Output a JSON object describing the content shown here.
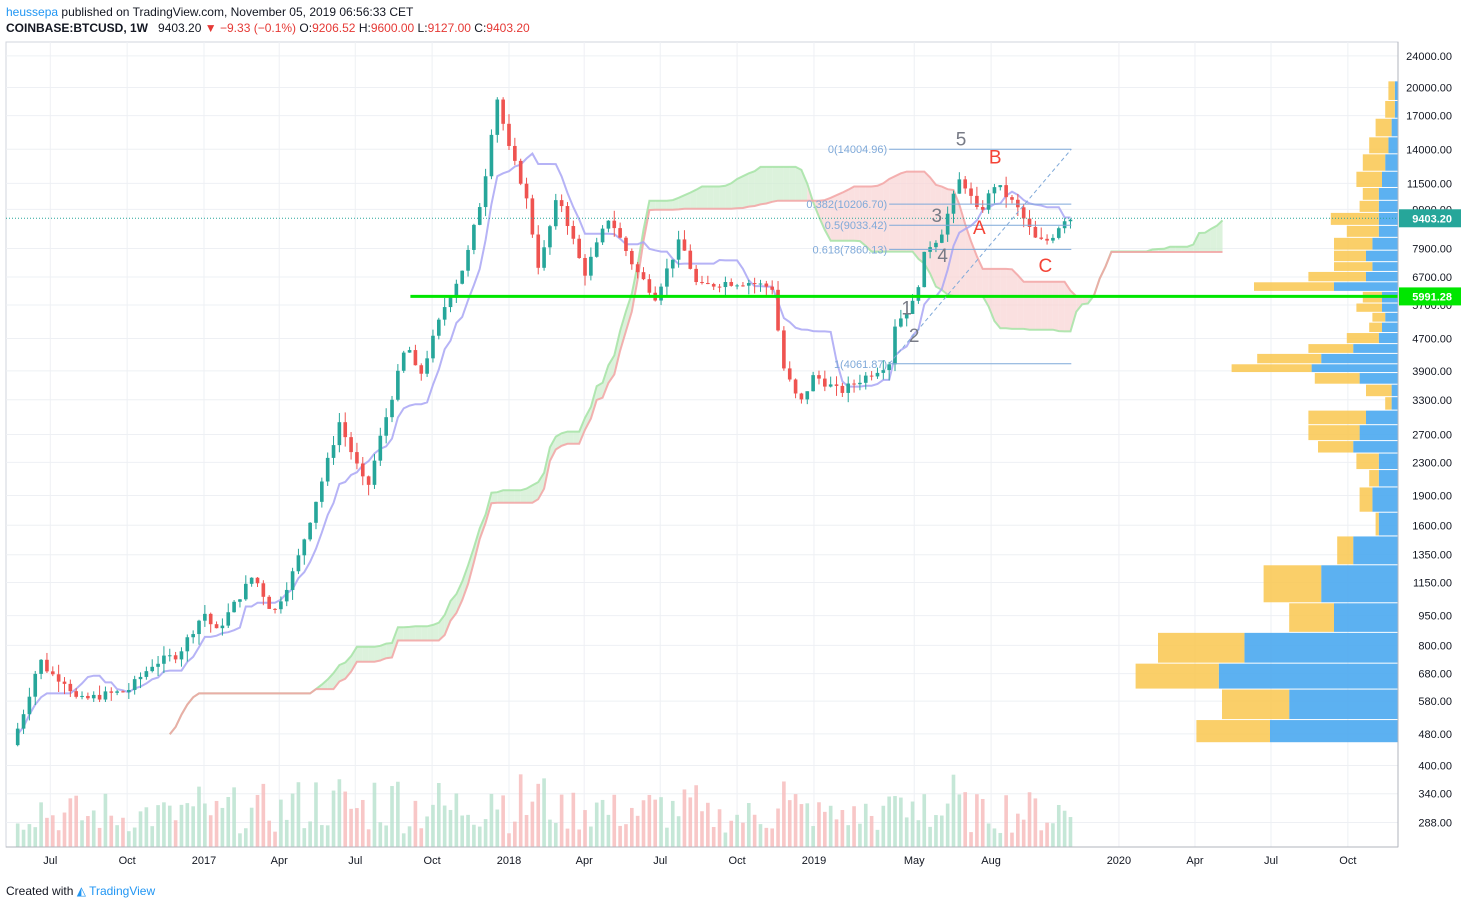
{
  "header": {
    "author": "heussepa",
    "published_text": "published on TradingView.com, November 05, 2019 06:56:33 CET",
    "symbol": "COINBASE:BTCUSD, 1W",
    "last": "9403.20",
    "change": "−9.33 (−0.1%)",
    "o_label": "O:",
    "o_value": "9206.52",
    "h_label": "H:",
    "h_value": "9600.00",
    "l_label": "L:",
    "l_value": "9127.00",
    "c_label": "C:",
    "c_value": "9403.20"
  },
  "footer": {
    "created_with": "Created with",
    "brand": "TradingView"
  },
  "colors": {
    "up": "#26a69a",
    "down": "#ef5350",
    "tenkan": "#a9a6f5",
    "kumo_green": "#cdeccd",
    "kumo_red": "#f8d3d3",
    "support": "#00e600",
    "vp_up": "#4aa8ef",
    "vp_down": "#f9c74f",
    "fib": "#7fa9d9",
    "elliott_impulse": "#787b86",
    "elliott_corrective": "#f44336",
    "price_tag": "#26a69a"
  },
  "chart_data": {
    "type": "candlestick",
    "symbol": "COINBASE:BTCUSD",
    "interval": "1W",
    "y_scale": "log",
    "ylim": [
      250,
      26000
    ],
    "y_ticks": [
      "24000.00",
      "20000.00",
      "17000.00",
      "14000.00",
      "11500.00",
      "9900.00",
      "7900.00",
      "6700.00",
      "5700.00",
      "4700.00",
      "3900.00",
      "3300.00",
      "2700.00",
      "2300.00",
      "1900.00",
      "1600.00",
      "1350.00",
      "1150.00",
      "950.00",
      "800.00",
      "680.00",
      "580.00",
      "480.00",
      "400.00",
      "340.00",
      "288.00"
    ],
    "x_range": [
      "2016-05-09",
      "2020-11-30"
    ],
    "x_ticks": [
      {
        "label": "Jul",
        "date": "2016-07-01"
      },
      {
        "label": "Oct",
        "date": "2016-10-01"
      },
      {
        "label": "2017",
        "date": "2017-01-01"
      },
      {
        "label": "Apr",
        "date": "2017-04-01"
      },
      {
        "label": "Jul",
        "date": "2017-07-01"
      },
      {
        "label": "Oct",
        "date": "2017-10-01"
      },
      {
        "label": "2018",
        "date": "2018-01-01"
      },
      {
        "label": "Apr",
        "date": "2018-04-01"
      },
      {
        "label": "Jul",
        "date": "2018-07-01"
      },
      {
        "label": "Oct",
        "date": "2018-10-01"
      },
      {
        "label": "2019",
        "date": "2019-01-01"
      },
      {
        "label": "May",
        "date": "2019-05-01"
      },
      {
        "label": "Aug",
        "date": "2019-08-01"
      },
      {
        "label": "2020",
        "date": "2020-01-01"
      },
      {
        "label": "Apr",
        "date": "2020-04-01"
      },
      {
        "label": "Jul",
        "date": "2020-07-01"
      },
      {
        "label": "Oct",
        "date": "2020-10-01"
      }
    ],
    "grid": true,
    "price_path": [
      {
        "date": "2016-05-16",
        "close": 450
      },
      {
        "date": "2016-06-01",
        "close": 560
      },
      {
        "date": "2016-06-18",
        "close": 740
      },
      {
        "date": "2016-07-01",
        "close": 680
      },
      {
        "date": "2016-07-20",
        "close": 650
      },
      {
        "date": "2016-08-03",
        "close": 580
      },
      {
        "date": "2016-09-01",
        "close": 600
      },
      {
        "date": "2016-10-01",
        "close": 615
      },
      {
        "date": "2016-11-01",
        "close": 720
      },
      {
        "date": "2016-12-01",
        "close": 760
      },
      {
        "date": "2017-01-01",
        "close": 970
      },
      {
        "date": "2017-01-15",
        "close": 860
      },
      {
        "date": "2017-03-01",
        "close": 1200
      },
      {
        "date": "2017-03-25",
        "close": 960
      },
      {
        "date": "2017-04-20",
        "close": 1250
      },
      {
        "date": "2017-05-20",
        "close": 2000
      },
      {
        "date": "2017-06-12",
        "close": 2900
      },
      {
        "date": "2017-07-15",
        "close": 1950
      },
      {
        "date": "2017-08-01",
        "close": 2700
      },
      {
        "date": "2017-09-01",
        "close": 4600
      },
      {
        "date": "2017-09-15",
        "close": 3700
      },
      {
        "date": "2017-10-15",
        "close": 5600
      },
      {
        "date": "2017-11-10",
        "close": 7300
      },
      {
        "date": "2017-12-01",
        "close": 11000
      },
      {
        "date": "2017-12-17",
        "close": 19200
      },
      {
        "date": "2018-01-01",
        "close": 14000
      },
      {
        "date": "2018-01-20",
        "close": 11000
      },
      {
        "date": "2018-02-06",
        "close": 7000
      },
      {
        "date": "2018-03-01",
        "close": 10800
      },
      {
        "date": "2018-04-01",
        "close": 6800
      },
      {
        "date": "2018-05-01",
        "close": 9500
      },
      {
        "date": "2018-06-01",
        "close": 7000
      },
      {
        "date": "2018-06-25",
        "close": 6000
      },
      {
        "date": "2018-07-25",
        "close": 8300
      },
      {
        "date": "2018-08-15",
        "close": 6300
      },
      {
        "date": "2018-09-15",
        "close": 6500
      },
      {
        "date": "2018-10-15",
        "close": 6500
      },
      {
        "date": "2018-11-12",
        "close": 6300
      },
      {
        "date": "2018-11-25",
        "close": 4000
      },
      {
        "date": "2018-12-15",
        "close": 3200
      },
      {
        "date": "2019-01-01",
        "close": 3800
      },
      {
        "date": "2019-02-01",
        "close": 3450
      },
      {
        "date": "2019-03-15",
        "close": 3900
      },
      {
        "date": "2019-04-01",
        "close": 4100
      },
      {
        "date": "2019-04-08",
        "close": 5100
      },
      {
        "date": "2019-05-01",
        "close": 5800
      },
      {
        "date": "2019-05-15",
        "close": 7900
      },
      {
        "date": "2019-06-01",
        "close": 8500
      },
      {
        "date": "2019-06-26",
        "close": 12000
      },
      {
        "date": "2019-07-17",
        "close": 9600
      },
      {
        "date": "2019-08-06",
        "close": 11500
      },
      {
        "date": "2019-09-01",
        "close": 10000
      },
      {
        "date": "2019-09-25",
        "close": 8200
      },
      {
        "date": "2019-10-10",
        "close": 8300
      },
      {
        "date": "2019-10-27",
        "close": 9400
      },
      {
        "date": "2019-11-05",
        "close": 9403.2
      }
    ],
    "last_price": 9403.2,
    "horizontal_line": {
      "price": 5991.28,
      "label": "5991.28"
    },
    "fibonacci": [
      {
        "label": "0(14004.96)",
        "price": 14004.96
      },
      {
        "label": "0.382(10206.70)",
        "price": 10206.7
      },
      {
        "label": "0.5(9033.42)",
        "price": 9033.42
      },
      {
        "label": "0.618(7860.13)",
        "price": 7860.13
      },
      {
        "label": "1(4061.87)",
        "price": 4061.87
      }
    ],
    "fib_range": [
      "2019-04-01",
      "2019-11-05"
    ],
    "elliott_waves": [
      {
        "label": "1",
        "date": "2019-04-22",
        "price": 5400,
        "kind": "impulse"
      },
      {
        "label": "2",
        "date": "2019-05-01",
        "price": 4600,
        "kind": "impulse"
      },
      {
        "label": "3",
        "date": "2019-05-28",
        "price": 9200,
        "kind": "impulse"
      },
      {
        "label": "4",
        "date": "2019-06-04",
        "price": 7300,
        "kind": "impulse"
      },
      {
        "label": "5",
        "date": "2019-06-26",
        "price": 14300,
        "kind": "impulse"
      },
      {
        "label": "A",
        "date": "2019-07-18",
        "price": 8600,
        "kind": "corrective"
      },
      {
        "label": "B",
        "date": "2019-08-06",
        "price": 12900,
        "kind": "corrective"
      },
      {
        "label": "C",
        "date": "2019-10-05",
        "price": 6900,
        "kind": "corrective"
      }
    ],
    "volume_profile": [
      {
        "price": 455,
        "up": 0.4,
        "down": 0.23
      },
      {
        "price": 520,
        "up": 0.34,
        "down": 0.21
      },
      {
        "price": 620,
        "up": 0.56,
        "down": 0.26
      },
      {
        "price": 720,
        "up": 0.48,
        "down": 0.27
      },
      {
        "price": 860,
        "up": 0.2,
        "down": 0.14
      },
      {
        "price": 1020,
        "up": 0.24,
        "down": 0.18
      },
      {
        "price": 1270,
        "up": 0.14,
        "down": 0.05
      },
      {
        "price": 1500,
        "up": 0.06,
        "down": 0.01
      },
      {
        "price": 1720,
        "up": 0.08,
        "down": 0.04
      },
      {
        "price": 1990,
        "up": 0.06,
        "down": 0.03
      },
      {
        "price": 2200,
        "up": 0.06,
        "down": 0.07
      },
      {
        "price": 2420,
        "up": 0.14,
        "down": 0.11
      },
      {
        "price": 2600,
        "up": 0.12,
        "down": 0.16
      },
      {
        "price": 2850,
        "up": 0.1,
        "down": 0.18
      },
      {
        "price": 3100,
        "up": 0.02,
        "down": 0.02
      },
      {
        "price": 3350,
        "up": 0.02,
        "down": 0.08
      },
      {
        "price": 3600,
        "up": 0.12,
        "down": 0.14
      },
      {
        "price": 3850,
        "up": 0.27,
        "down": 0.25
      },
      {
        "price": 4050,
        "up": 0.24,
        "down": 0.2
      },
      {
        "price": 4300,
        "up": 0.14,
        "down": 0.14
      },
      {
        "price": 4550,
        "up": 0.06,
        "down": 0.1
      },
      {
        "price": 4850,
        "up": 0.05,
        "down": 0.04
      },
      {
        "price": 5150,
        "up": 0.04,
        "down": 0.04
      },
      {
        "price": 5450,
        "up": 0.05,
        "down": 0.08
      },
      {
        "price": 5750,
        "up": 0.05,
        "down": 0.06
      },
      {
        "price": 6150,
        "up": 0.2,
        "down": 0.25
      },
      {
        "price": 6500,
        "up": 0.1,
        "down": 0.18
      },
      {
        "price": 6900,
        "up": 0.08,
        "down": 0.12
      },
      {
        "price": 7300,
        "up": 0.1,
        "down": 0.1
      },
      {
        "price": 7800,
        "up": 0.08,
        "down": 0.12
      },
      {
        "price": 8400,
        "up": 0.06,
        "down": 0.1
      },
      {
        "price": 9000,
        "up": 0.06,
        "down": 0.15
      },
      {
        "price": 9700,
        "up": 0.06,
        "down": 0.06
      },
      {
        "price": 10400,
        "up": 0.06,
        "down": 0.05
      },
      {
        "price": 11200,
        "up": 0.05,
        "down": 0.08
      },
      {
        "price": 12300,
        "up": 0.04,
        "down": 0.07
      },
      {
        "price": 13600,
        "up": 0.03,
        "down": 0.06
      },
      {
        "price": 15000,
        "up": 0.02,
        "down": 0.05
      },
      {
        "price": 16700,
        "up": 0.01,
        "down": 0.03
      },
      {
        "price": 18500,
        "up": 0.01,
        "down": 0.02
      }
    ]
  }
}
